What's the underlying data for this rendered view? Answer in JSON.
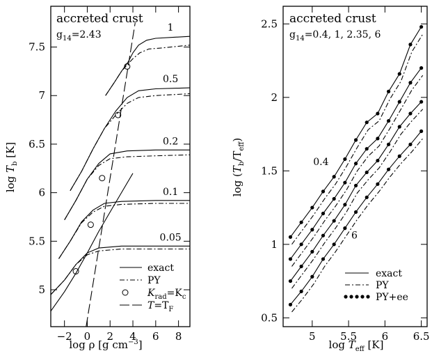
{
  "chart_data": [
    {
      "type": "line",
      "title": "accreted crust",
      "subtitle_main": "g",
      "subtitle_sub": "14",
      "subtitle_value": "=2.43",
      "xlabel": "log ρ  [g cm",
      "xlabel_sup": "−3",
      "xlabel_end": "]",
      "ylabel_pre": "log ",
      "ylabel_var": "T",
      "ylabel_sub": "b",
      "ylabel_end": " [K]",
      "xlim": [
        -3.2,
        9.0
      ],
      "ylim": [
        4.62,
        7.92
      ],
      "xticks": [
        -2,
        0,
        2,
        4,
        6,
        8
      ],
      "xtick_labels": [
        "−2",
        "0",
        "2",
        "4",
        "6",
        "8"
      ],
      "yticks": [
        5,
        5.5,
        6,
        6.5,
        7,
        7.5
      ],
      "ytick_labels": [
        "5",
        "5.5",
        "6",
        "6.5",
        "7",
        "7.5"
      ],
      "series_labels": [
        "1",
        "0.5",
        "0.2",
        "0.1",
        "0.05"
      ],
      "legend": {
        "placement": "bottom-right",
        "entries": [
          {
            "style": "solid",
            "label": "exact"
          },
          {
            "style": "dashdot",
            "label": "PY"
          },
          {
            "style": "circle",
            "label_main": "K",
            "label_sub": "rad",
            "label_mid": "=K",
            "label_sub2": "c"
          },
          {
            "style": "longdash",
            "label_main": "T",
            "label_mid": "=T",
            "label_sub2": "F"
          }
        ]
      },
      "series": [
        {
          "label": "1",
          "exact": [
            [
              1.6,
              7.0
            ],
            [
              2.4,
              7.14
            ],
            [
              3.0,
              7.25
            ],
            [
              3.6,
              7.35
            ],
            [
              4.0,
              7.44
            ],
            [
              4.5,
              7.52
            ],
            [
              5.2,
              7.57
            ],
            [
              6.0,
              7.59
            ],
            [
              7.5,
              7.6
            ],
            [
              9.0,
              7.61
            ]
          ],
          "py": [
            [
              1.6,
              7.0
            ],
            [
              2.4,
              7.14
            ],
            [
              3.0,
              7.25
            ],
            [
              3.6,
              7.33
            ],
            [
              4.0,
              7.38
            ],
            [
              4.6,
              7.44
            ],
            [
              5.4,
              7.48
            ],
            [
              6.5,
              7.49
            ],
            [
              9.0,
              7.52
            ]
          ]
        },
        {
          "label": "0.5",
          "exact": [
            [
              -1.5,
              6.02
            ],
            [
              -0.5,
              6.22
            ],
            [
              0.5,
              6.45
            ],
            [
              1.5,
              6.66
            ],
            [
              2.5,
              6.84
            ],
            [
              3.5,
              6.98
            ],
            [
              4.5,
              7.05
            ],
            [
              6.0,
              7.07
            ],
            [
              9.0,
              7.08
            ]
          ],
          "py": [
            [
              -1.5,
              6.02
            ],
            [
              -0.5,
              6.22
            ],
            [
              0.5,
              6.45
            ],
            [
              1.5,
              6.66
            ],
            [
              2.5,
              6.8
            ],
            [
              3.5,
              6.92
            ],
            [
              4.5,
              6.98
            ],
            [
              6.0,
              7.0
            ],
            [
              9.0,
              7.02
            ]
          ]
        },
        {
          "label": "0.2",
          "exact": [
            [
              -2.0,
              5.72
            ],
            [
              -1.0,
              5.92
            ],
            [
              0.0,
              6.14
            ],
            [
              1.0,
              6.3
            ],
            [
              2.0,
              6.4
            ],
            [
              3.5,
              6.43
            ],
            [
              6.0,
              6.44
            ],
            [
              9.0,
              6.44
            ]
          ],
          "py": [
            [
              -2.0,
              5.72
            ],
            [
              -1.0,
              5.92
            ],
            [
              0.0,
              6.14
            ],
            [
              1.0,
              6.28
            ],
            [
              2.0,
              6.35
            ],
            [
              3.5,
              6.37
            ],
            [
              6.0,
              6.38
            ],
            [
              9.0,
              6.39
            ]
          ]
        },
        {
          "label": "0.1",
          "exact": [
            [
              -2.5,
              5.32
            ],
            [
              -1.5,
              5.5
            ],
            [
              -0.5,
              5.7
            ],
            [
              0.5,
              5.82
            ],
            [
              1.5,
              5.89
            ],
            [
              3.0,
              5.91
            ],
            [
              6.0,
              5.92
            ],
            [
              9.0,
              5.92
            ]
          ],
          "py": [
            [
              -2.5,
              5.32
            ],
            [
              -1.5,
              5.5
            ],
            [
              -0.5,
              5.69
            ],
            [
              0.5,
              5.8
            ],
            [
              1.5,
              5.86
            ],
            [
              3.0,
              5.88
            ],
            [
              6.0,
              5.89
            ],
            [
              9.0,
              5.89
            ]
          ]
        },
        {
          "label": "0.05",
          "exact": [
            [
              -3.2,
              4.95
            ],
            [
              -2.0,
              5.1
            ],
            [
              -1.0,
              5.26
            ],
            [
              0.0,
              5.38
            ],
            [
              1.0,
              5.43
            ],
            [
              3.0,
              5.45
            ],
            [
              6.0,
              5.45
            ],
            [
              9.0,
              5.45
            ]
          ],
          "py": [
            [
              -3.2,
              4.95
            ],
            [
              -2.0,
              5.1
            ],
            [
              -1.0,
              5.26
            ],
            [
              0.0,
              5.36
            ],
            [
              1.0,
              5.4
            ],
            [
              3.0,
              5.42
            ],
            [
              6.0,
              5.42
            ],
            [
              9.0,
              5.42
            ]
          ]
        }
      ],
      "lines_unlabeled": [
        {
          "style": "longdash",
          "points": [
            [
              -0.1,
              4.62
            ],
            [
              4.2,
              7.75
            ]
          ]
        },
        {
          "style": "solid",
          "points": [
            [
              -3.2,
              4.78
            ],
            [
              -2.0,
              4.98
            ],
            [
              -1.0,
              5.17
            ],
            [
              0.0,
              5.38
            ],
            [
              1.0,
              5.6
            ],
            [
              2.0,
              5.8
            ],
            [
              3.0,
              6.0
            ],
            [
              4.0,
              6.2
            ]
          ]
        }
      ],
      "markers": [
        [
          3.5,
          7.3
        ],
        [
          2.7,
          6.8
        ],
        [
          1.3,
          6.15
        ],
        [
          0.3,
          5.67
        ],
        [
          -1.0,
          5.19
        ]
      ]
    },
    {
      "type": "line",
      "title": "accreted crust",
      "subtitle_main": "g",
      "subtitle_sub": "14",
      "subtitle_value": "=0.4,  1,  2.35,  6",
      "xlabel_pre": "log ",
      "xlabel_var": "T",
      "xlabel_sub": "eff",
      "xlabel_end": " [K]",
      "ylabel_pre": "log (",
      "ylabel_var": "T",
      "ylabel_sub": "b",
      "ylabel_mid": "/T",
      "ylabel_sub2": "eff",
      "ylabel_end": ")",
      "xlim": [
        4.6,
        6.58
      ],
      "ylim": [
        0.44,
        2.62
      ],
      "xticks": [
        5,
        5.5,
        6,
        6.5
      ],
      "xtick_labels": [
        "5",
        "5.5",
        "6",
        "6.5"
      ],
      "yticks": [
        0.5,
        1,
        1.5,
        2,
        2.5
      ],
      "ytick_labels": [
        "0.5",
        "1",
        "1.5",
        "2",
        "2.5"
      ],
      "series_labels": [
        "0.4",
        "6"
      ],
      "legend": {
        "placement": "bottom-right",
        "entries": [
          {
            "style": "solid",
            "label": "exact"
          },
          {
            "style": "dashdot",
            "label": "PY"
          },
          {
            "style": "dots",
            "label": "PY+ee"
          }
        ]
      },
      "x": [
        4.7,
        4.85,
        5.0,
        5.15,
        5.3,
        5.45,
        5.6,
        5.75,
        5.9,
        6.05,
        6.2,
        6.35,
        6.5
      ],
      "series": [
        {
          "label": "0.4",
          "values": [
            1.05,
            1.15,
            1.25,
            1.36,
            1.46,
            1.58,
            1.71,
            1.83,
            1.89,
            2.04,
            2.16,
            2.36,
            2.48
          ]
        },
        {
          "label": "",
          "values": [
            0.9,
            1.0,
            1.1,
            1.21,
            1.31,
            1.42,
            1.55,
            1.65,
            1.72,
            1.84,
            1.97,
            2.1,
            2.2
          ]
        },
        {
          "label": "",
          "values": [
            0.75,
            0.85,
            0.95,
            1.06,
            1.16,
            1.27,
            1.4,
            1.49,
            1.57,
            1.68,
            1.8,
            1.89,
            1.97
          ]
        },
        {
          "label": "6",
          "values": [
            0.59,
            0.68,
            0.78,
            0.9,
            1.0,
            1.11,
            1.22,
            1.32,
            1.41,
            1.51,
            1.6,
            1.68,
            1.77
          ]
        }
      ]
    }
  ]
}
